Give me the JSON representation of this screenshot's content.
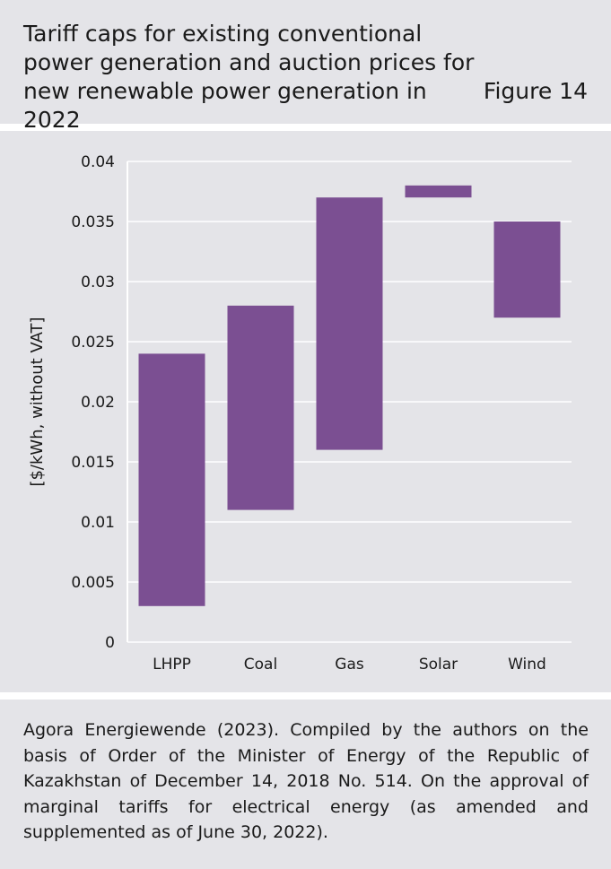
{
  "header": {
    "title": "Tariff caps for existing conventional power generation and auction prices for new renewable power generation in 2022",
    "figure_label": "Figure 14"
  },
  "footer": {
    "source": "Agora Energiewende (2023). Compiled by the authors on the basis of Order of the Minister of Energy of the Republic of Kazakhstan of December 14, 2018 No. 514. On the approval of marginal tariffs for electrical energy (as amended and supplemented as of June 30, 2022)."
  },
  "colors": {
    "bar": "#7b4f92",
    "grid": "#ffffff",
    "background": "#e4e4e8",
    "axis": "#ffffff"
  },
  "chart_data": {
    "type": "bar",
    "subtype": "floating-range",
    "ylabel": "[$/kWh, without VAT]",
    "xlabel": "",
    "ylim": [
      0,
      0.04
    ],
    "yticks": [
      "0",
      "0.005",
      "0.01",
      "0.015",
      "0.02",
      "0.025",
      "0.03",
      "0.035",
      "0.04"
    ],
    "grid": true,
    "categories": [
      "LHPP",
      "Coal",
      "Gas",
      "Solar",
      "Wind"
    ],
    "series": [
      {
        "low": [
          0.003,
          0.011,
          0.016,
          0.037,
          0.027
        ],
        "high": [
          0.024,
          0.028,
          0.037,
          0.038,
          0.035
        ]
      }
    ]
  }
}
